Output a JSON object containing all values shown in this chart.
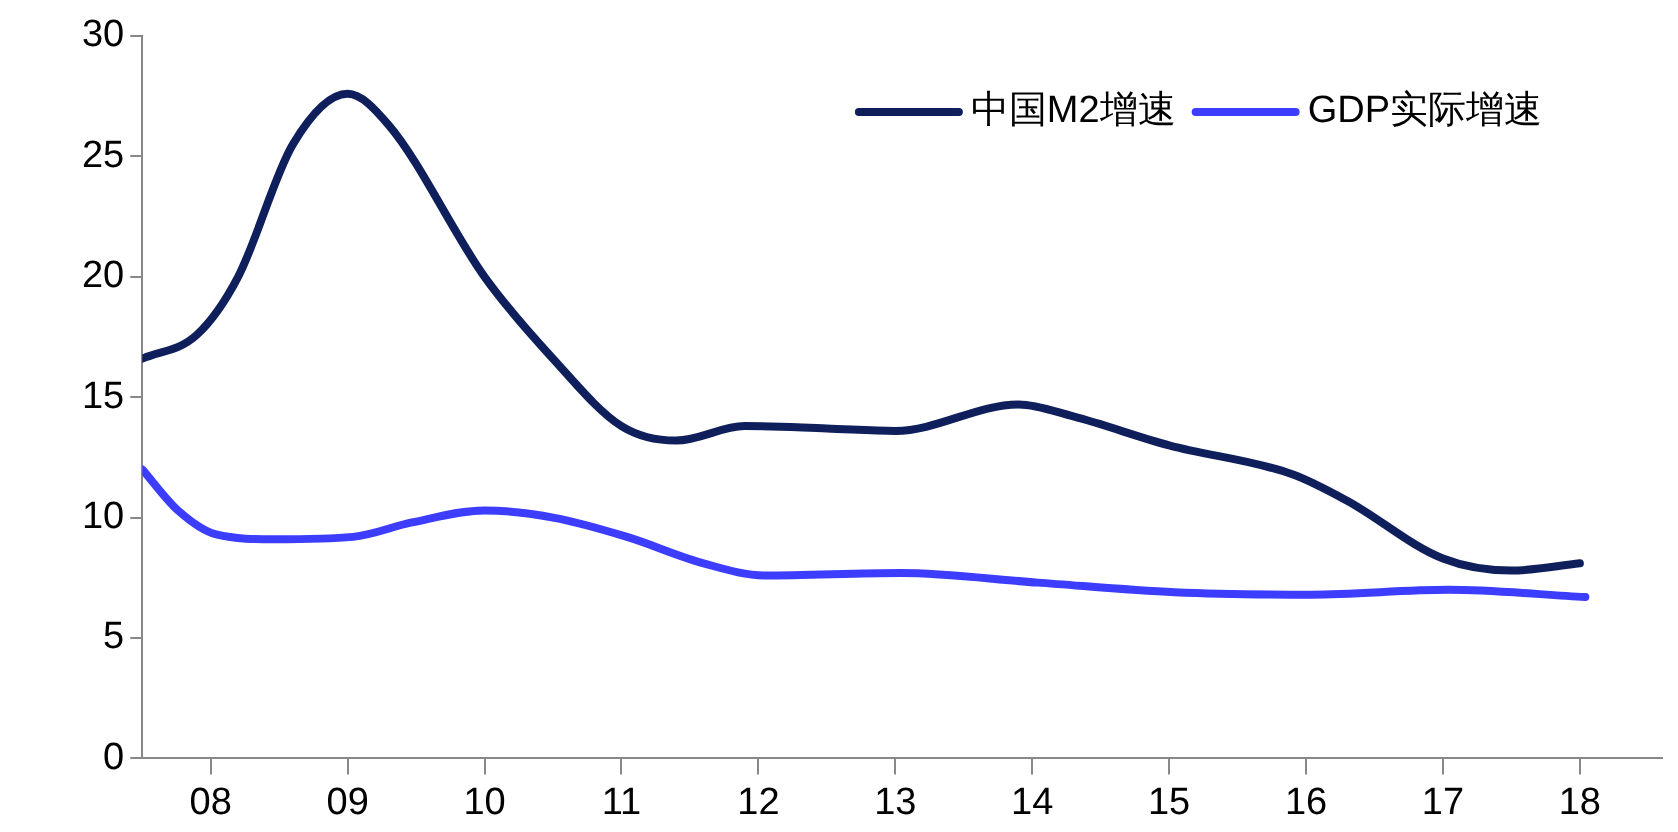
{
  "chart_data": {
    "type": "line",
    "legend": "top right",
    "grid": false,
    "marker": "none",
    "line_style": "solid",
    "xlim": [
      7.5,
      18.6
    ],
    "xticks": [
      {
        "value": 8,
        "label": "08"
      },
      {
        "value": 9,
        "label": "09"
      },
      {
        "value": 10,
        "label": "10"
      },
      {
        "value": 11,
        "label": "11"
      },
      {
        "value": 12,
        "label": "12"
      },
      {
        "value": 13,
        "label": "13"
      },
      {
        "value": 14,
        "label": "14"
      },
      {
        "value": 15,
        "label": "15"
      },
      {
        "value": 16,
        "label": "16"
      },
      {
        "value": 17,
        "label": "17"
      },
      {
        "value": 18,
        "label": "18"
      }
    ],
    "ylim": [
      0,
      30
    ],
    "yticks": [
      0,
      5,
      10,
      15,
      20,
      25,
      30
    ],
    "series": [
      {
        "name": "中国M2增速",
        "color": "#0f1f5c",
        "x": [
          7.5,
          7.9,
          8.2,
          8.6,
          9.0,
          9.3,
          10.0,
          10.5,
          11.0,
          11.4,
          11.9,
          12.5,
          13.0,
          13.9,
          14.3,
          15.0,
          15.9,
          16.3,
          17.0,
          17.5,
          18.0
        ],
        "values": [
          16.6,
          17.6,
          20,
          25.5,
          27.6,
          26.3,
          20,
          16.6,
          13.8,
          13.2,
          13.8,
          13.7,
          13.6,
          14.7,
          14.2,
          13.0,
          11.8,
          10.7,
          8.3,
          7.8,
          8.1
        ]
      },
      {
        "name": "GDP实际增速",
        "color": "#3d3dff",
        "x": [
          7.5,
          7.76,
          8.04,
          8.47,
          9.04,
          9.47,
          10.0,
          10.5,
          11.04,
          11.6,
          12.04,
          13.04,
          14.04,
          15.04,
          16.04,
          17.04,
          18.04
        ],
        "values": [
          12.0,
          10.3,
          9.3,
          9.1,
          9.2,
          9.8,
          10.3,
          10.0,
          9.2,
          8.1,
          7.6,
          7.7,
          7.3,
          6.9,
          6.8,
          7.0,
          6.7
        ]
      }
    ]
  }
}
